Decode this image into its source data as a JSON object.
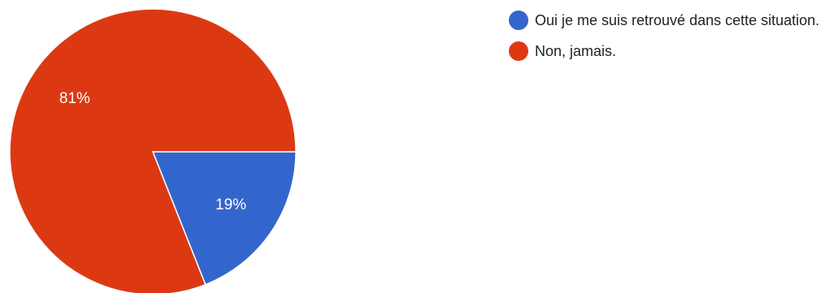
{
  "chart_data": {
    "type": "pie",
    "slices": [
      {
        "name": "Oui je me suis retrouvé dans cette situation.",
        "value": 19,
        "label": "19%",
        "color": "#3366cc"
      },
      {
        "name": "Non, jamais.",
        "value": 81,
        "label": "81%",
        "color": "#dc3912"
      }
    ],
    "legend_position": "right",
    "start_angle_deg": 90,
    "direction": "clockwise"
  }
}
